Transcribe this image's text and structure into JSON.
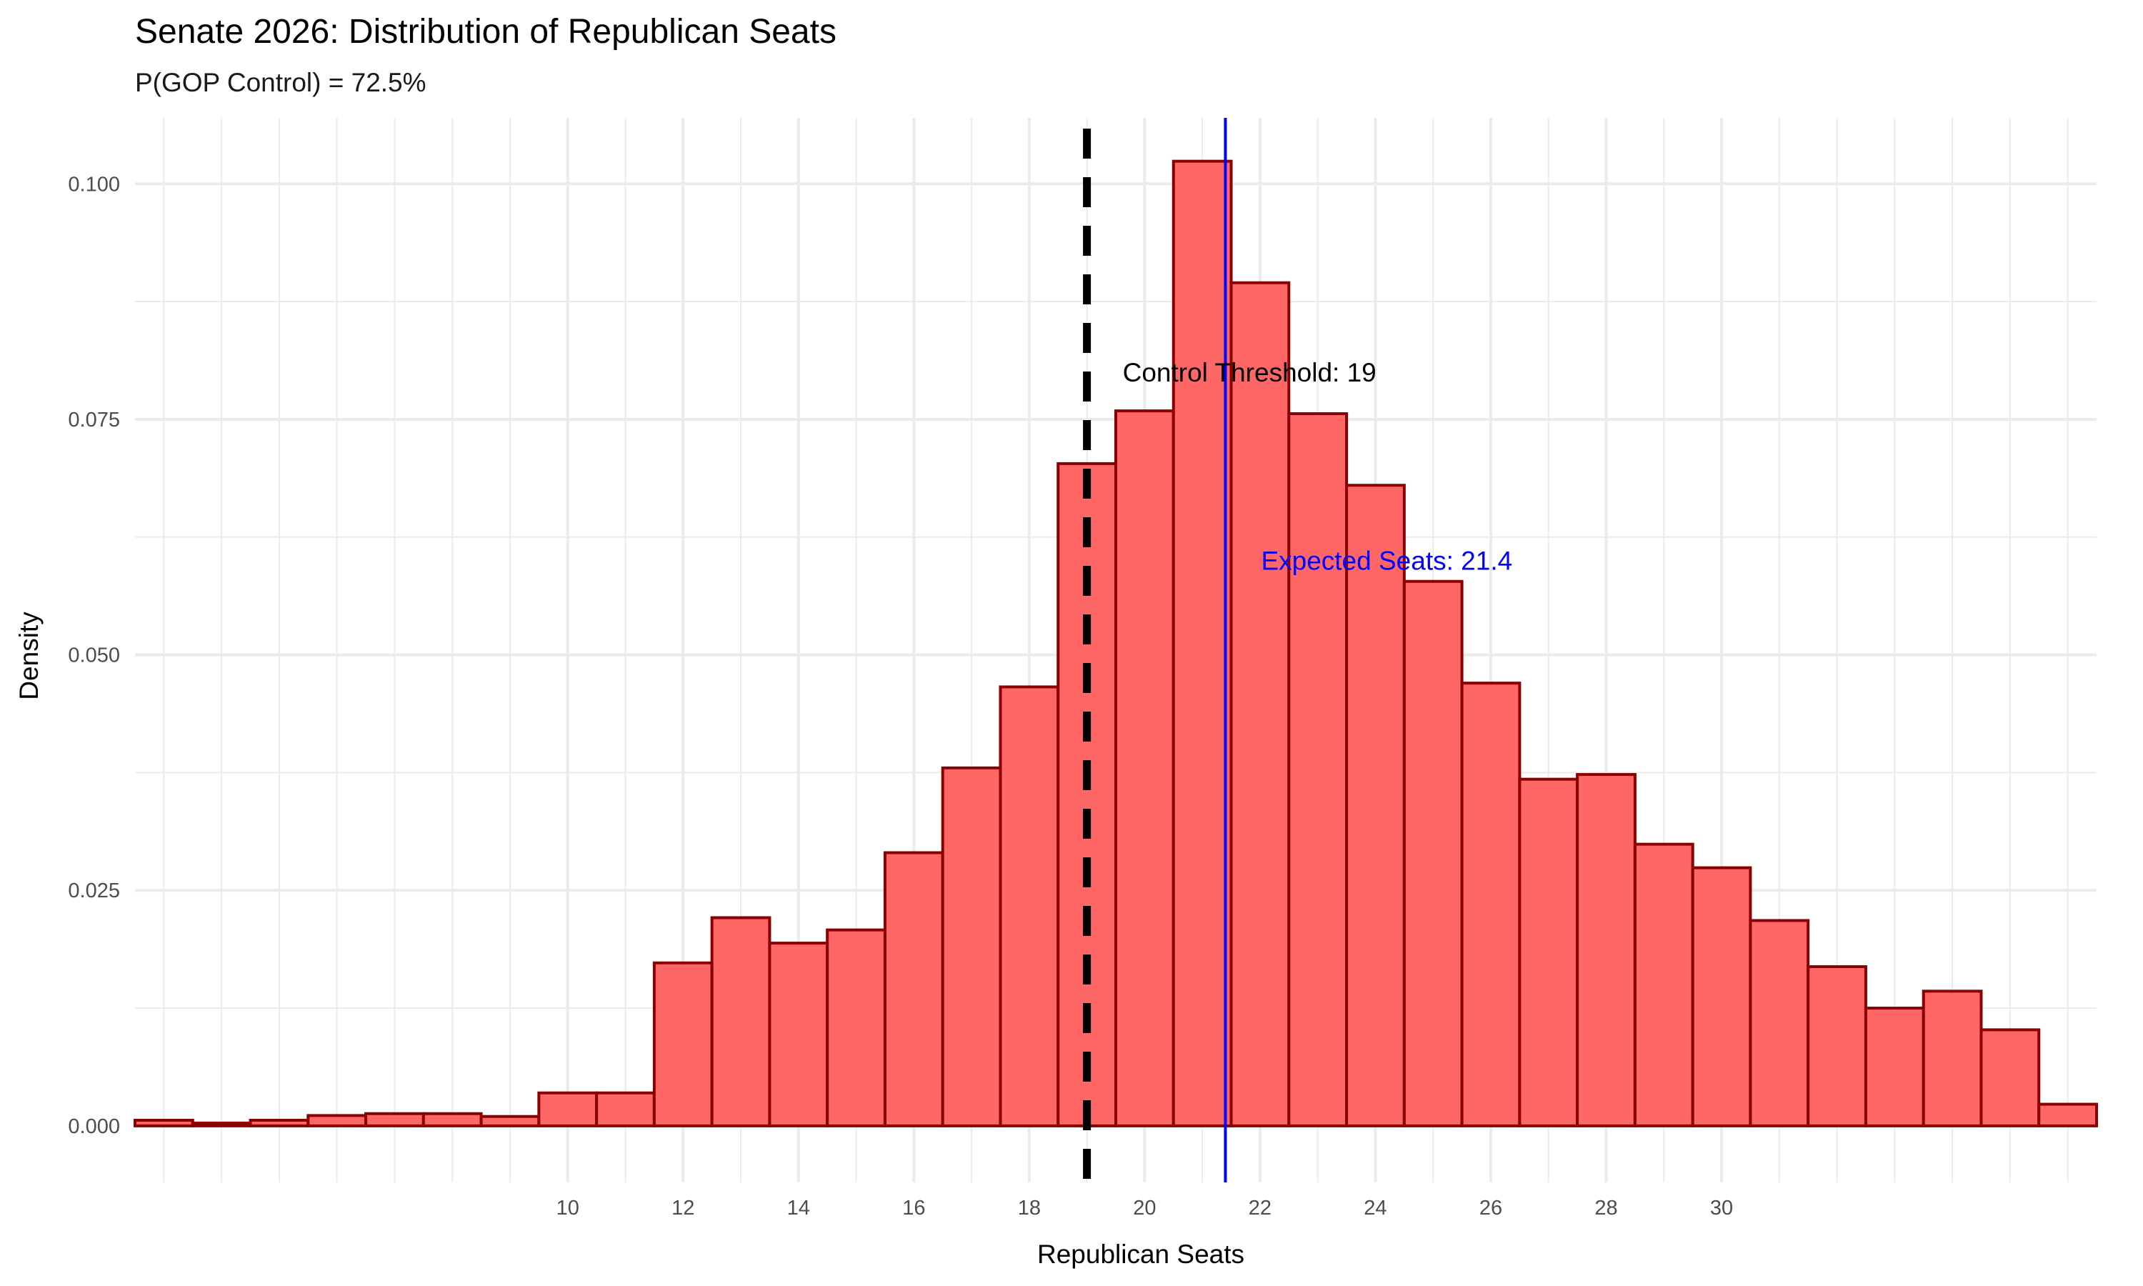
{
  "chart_data": {
    "type": "histogram",
    "title": "Senate 2026: Distribution of Republican Seats",
    "subtitle": "P(GOP Control) = 72.5%",
    "xlabel": "Republican Seats",
    "ylabel": "Density",
    "xlim": [
      2.5,
      36.5
    ],
    "ylim": [
      -0.006,
      0.107
    ],
    "x_ticks": [
      10,
      12,
      14,
      16,
      18,
      20,
      22,
      24,
      26,
      28,
      30
    ],
    "x_tick_labels": [
      "10",
      "12",
      "14",
      "16",
      "18",
      "20",
      "22",
      "24",
      "26",
      "28",
      "30"
    ],
    "y_ticks": [
      0,
      0.025,
      0.05,
      0.075,
      0.1
    ],
    "y_tick_labels": [
      "0.000",
      "0.025",
      "0.050",
      "0.075",
      "0.100"
    ],
    "grid": true,
    "bin_width": 1,
    "bins": [
      3,
      4,
      5,
      6,
      7,
      8,
      9,
      10,
      11,
      12,
      13,
      14,
      15,
      16,
      17,
      18,
      19,
      20,
      21,
      22,
      23,
      24,
      25,
      26,
      27,
      28,
      29,
      30,
      31,
      32,
      33,
      34,
      35,
      36
    ],
    "values": [
      0.0006,
      0.0003,
      0.0006,
      0.0011,
      0.0013,
      0.0013,
      0.001,
      0.0035,
      0.0035,
      0.0173,
      0.0221,
      0.0194,
      0.0208,
      0.029,
      0.038,
      0.0466,
      0.0703,
      0.0759,
      0.1024,
      0.0895,
      0.0756,
      0.068,
      0.0578,
      0.047,
      0.0368,
      0.0373,
      0.0299,
      0.0274,
      0.0218,
      0.0169,
      0.0125,
      0.0143,
      0.0102,
      0.0023
    ],
    "bar_fill": "#ff6666",
    "bar_outline": "#8b0000",
    "threshold": {
      "x": 19,
      "label": "Control Threshold: 19",
      "color": "#000000",
      "label_y": 0.08
    },
    "expected": {
      "x": 21.4,
      "label": "Expected Seats: 21.4",
      "color": "#0000ff",
      "label_y": 0.06
    }
  }
}
